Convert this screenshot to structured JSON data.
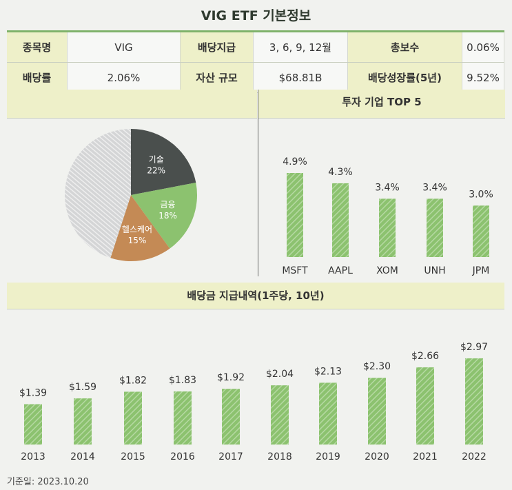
{
  "title": "VIG ETF 기본정보",
  "info": {
    "row1": [
      "종목명",
      "VIG",
      "배당지급",
      "3, 6, 9, 12월",
      "총보수",
      "0.06%"
    ],
    "row2": [
      "배당률",
      "2.06%",
      "자산 규모",
      "$68.81B",
      "배당성장률(5년)",
      "9.52%"
    ]
  },
  "colors": {
    "accent": "#8cc26f",
    "tech": "#4a4f4d",
    "health": "#c48a55",
    "other": "#d4d5d6"
  },
  "chart_data": [
    {
      "type": "pie",
      "title": "",
      "slices": [
        {
          "label": "기술",
          "value": 22,
          "text": "22%"
        },
        {
          "label": "금융",
          "value": 18,
          "text": "18%"
        },
        {
          "label": "헬스케어",
          "value": 15,
          "text": "15%"
        },
        {
          "label": "",
          "value": 45
        }
      ]
    },
    {
      "type": "bar",
      "title": "투자 기업 TOP 5",
      "categories": [
        "MSFT",
        "AAPL",
        "XOM",
        "UNH",
        "JPM"
      ],
      "values": [
        4.9,
        4.3,
        3.4,
        3.4,
        3.0
      ],
      "labels": [
        "4.9%",
        "4.3%",
        "3.4%",
        "3.4%",
        "3.0%"
      ],
      "ylim": [
        0,
        4.9
      ]
    },
    {
      "type": "bar",
      "title": "배당금 지급내역(1주당, 10년)",
      "categories": [
        "2013",
        "2014",
        "2015",
        "2016",
        "2017",
        "2018",
        "2019",
        "2020",
        "2021",
        "2022"
      ],
      "values": [
        1.39,
        1.59,
        1.82,
        1.83,
        1.92,
        2.04,
        2.13,
        2.3,
        2.66,
        2.97
      ],
      "labels": [
        "$1.39",
        "$1.59",
        "$1.82",
        "$1.83",
        "$1.92",
        "$2.04",
        "$2.13",
        "$2.30",
        "$2.66",
        "$2.97"
      ],
      "ylim": [
        0,
        2.97
      ]
    }
  ],
  "footer": "기준일: 2023.10.20"
}
